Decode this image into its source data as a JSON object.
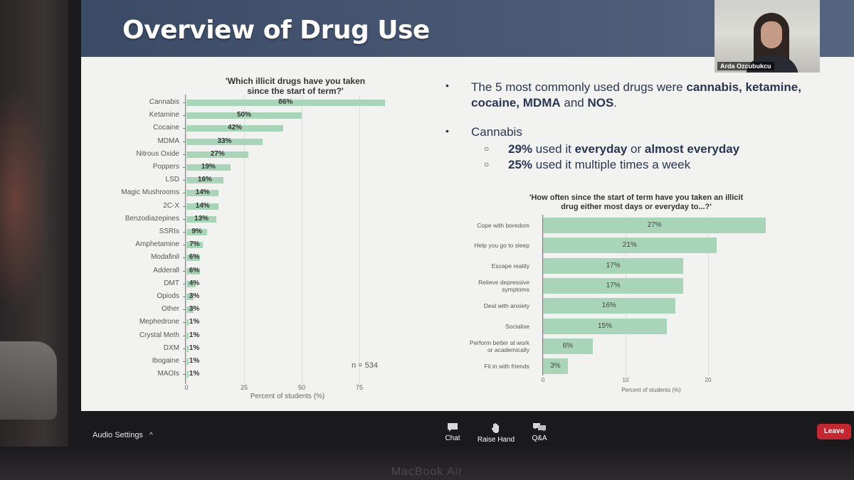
{
  "slide": {
    "title": "Overview of Drug Use"
  },
  "participant": {
    "name": "Arda Ozcubukcu"
  },
  "chart_data": [
    {
      "type": "bar",
      "orientation": "horizontal",
      "title": "'Which illicit drugs have you taken since the start of term?'",
      "title_lines": [
        "'Which illicit drugs have you taken",
        "since the start of term?'"
      ],
      "categories": [
        "Cannabis",
        "Ketamine",
        "Cocaine",
        "MDMA",
        "Nitrous Oxide",
        "Poppers",
        "LSD",
        "Magic Mushrooms",
        "2C-X",
        "Benzodiazepines",
        "SSRIs",
        "Amphetamine",
        "Modafinil",
        "Adderall",
        "DMT",
        "Opiods",
        "Other",
        "Mephedrone",
        "Crystal Meth",
        "DXM",
        "Ibogaine",
        "MAOIs"
      ],
      "values": [
        86,
        50,
        42,
        33,
        27,
        19,
        16,
        14,
        14,
        13,
        9,
        7,
        6,
        6,
        4,
        3,
        3,
        1,
        1,
        1,
        1,
        1
      ],
      "value_labels": [
        "86%",
        "50%",
        "42%",
        "33%",
        "27%",
        "19%",
        "16%",
        "14%",
        "14%",
        "13%",
        "9%",
        "7%",
        "6%",
        "6%",
        "4%",
        "3%",
        "3%",
        "1%",
        "1%",
        "1%",
        "1%",
        "1%"
      ],
      "xlabel": "Percent of students (%)",
      "xticks": [
        "0",
        "25",
        "50",
        "75"
      ],
      "xlim": [
        0,
        90
      ],
      "annotation": "n = 534"
    },
    {
      "type": "bar",
      "orientation": "horizontal",
      "title": "'How often since the start of term have you taken an illicit drug either most days or everyday to...?'",
      "title_lines": [
        "'How often since the start of term have you taken an illicit",
        "drug either most days or everyday to...?'"
      ],
      "categories": [
        "Cope with boredom",
        "Help you go to sleep",
        "Escape reality",
        "Relieve depressive symptoms",
        "Deal with anxiety",
        "Socialise",
        "Perform better at work or academically",
        "Fit in with friends"
      ],
      "category_lines": [
        [
          "Cope with boredom"
        ],
        [
          "Help you go to sleep"
        ],
        [
          "Escape reality"
        ],
        [
          "Relieve depressive",
          "symptoms"
        ],
        [
          "Deal with anxiety"
        ],
        [
          "Socialise"
        ],
        [
          "Perform better at work",
          "or academically"
        ],
        [
          "Fit in with friends"
        ]
      ],
      "values": [
        27,
        21,
        17,
        17,
        16,
        15,
        6,
        3
      ],
      "value_labels": [
        "27%",
        "21%",
        "17%",
        "17%",
        "16%",
        "15%",
        "6%",
        "3%"
      ],
      "xlabel": "Percent of students (%)",
      "xticks": [
        "0",
        "10",
        "20"
      ],
      "xlim": [
        0,
        27.5
      ]
    }
  ],
  "bullets": {
    "b1_text_parts": [
      "The 5 most commonly used drugs were ",
      "cannabis, ketamine,",
      "cocaine, MDMA",
      " and ",
      "NOS",
      "."
    ],
    "b2_heading": "Cannabis",
    "sub1_parts": [
      "29%",
      " used it ",
      "everyday",
      " or ",
      "almost everyday"
    ],
    "sub2_parts": [
      "25%",
      " used it multiple times a week"
    ],
    "bullet_glyph": "•",
    "sub_glyph": "○"
  },
  "toolbar": {
    "audio_settings": "Audio Settings",
    "chevron": "^",
    "chat": "Chat",
    "raise_hand": "Raise Hand",
    "qa": "Q&A",
    "leave": "Leave"
  },
  "device": {
    "label": "MacBook Air"
  }
}
